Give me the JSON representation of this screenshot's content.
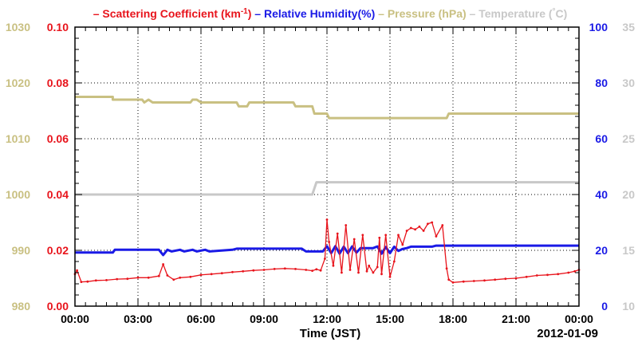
{
  "chart_data": {
    "type": "line",
    "xlabel": "Time (JST)",
    "date_label": "2012-01-09",
    "x_tick_labels": [
      "00:00",
      "03:00",
      "06:00",
      "09:00",
      "12:00",
      "15:00",
      "18:00",
      "21:00",
      "00:00"
    ],
    "xlim_hours": [
      0,
      24
    ],
    "grid": true,
    "legend": {
      "placement": "top",
      "entries": [
        {
          "marker": "–",
          "name": "Scattering Coefficient (km",
          "sup": "-1",
          "after": ")",
          "color": "#e8141c"
        },
        {
          "marker": "–",
          "name": "Relative Humidity(%)",
          "color": "#1a1ae6"
        },
        {
          "marker": "–",
          "name": "Pressure (hPa)",
          "color": "#c9c082"
        },
        {
          "marker": "–",
          "name": "Temperature (",
          "sup": "°",
          "after": "C)",
          "color": "#c8c8c8"
        }
      ]
    },
    "axes": {
      "scattering": {
        "side": "left-inner",
        "ylim": [
          0,
          0.1
        ],
        "ticks": [
          "0.00",
          "0.02",
          "0.04",
          "0.06",
          "0.08",
          "0.10"
        ],
        "color": "#e8141c"
      },
      "pressure": {
        "side": "left-outer",
        "ylim": [
          980,
          1030
        ],
        "ticks": [
          "980",
          "990",
          "1000",
          "1010",
          "1020",
          "1030"
        ],
        "color": "#c9c082"
      },
      "humidity": {
        "side": "right-inner",
        "ylim": [
          0,
          100
        ],
        "ticks": [
          "0",
          "20",
          "40",
          "60",
          "80",
          "100"
        ],
        "color": "#1a1ae6"
      },
      "temperature": {
        "side": "right-outer",
        "ylim": [
          10,
          35
        ],
        "ticks": [
          "10",
          "15",
          "20",
          "25",
          "30",
          "35"
        ],
        "color": "#c8c8c8"
      }
    },
    "series": [
      {
        "name": "Pressure (hPa)",
        "axis": "pressure",
        "color": "#c9c082",
        "x": [
          0,
          1.8,
          1.8,
          3.2,
          3.3,
          3.5,
          3.7,
          5.5,
          5.6,
          5.8,
          6.0,
          7.7,
          7.8,
          8.2,
          8.3,
          10.4,
          10.5,
          11.3,
          11.4,
          12.0,
          12.1,
          17.7,
          17.8,
          24
        ],
        "values": [
          1017.5,
          1017.5,
          1017,
          1017,
          1016.5,
          1017,
          1016.5,
          1016.5,
          1017,
          1017,
          1016.5,
          1016.5,
          1015.8,
          1015.8,
          1016.5,
          1016.5,
          1015.8,
          1015.8,
          1014.5,
          1014.5,
          1013.7,
          1013.7,
          1014.5,
          1014.5
        ]
      },
      {
        "name": "Temperature (°C)",
        "axis": "temperature",
        "color": "#c8c8c8",
        "x": [
          0,
          11.3,
          11.5,
          24
        ],
        "values": [
          20.0,
          20.0,
          21.1,
          21.1
        ]
      },
      {
        "name": "Relative Humidity(%)",
        "axis": "humidity",
        "color": "#1a1ae6",
        "x": [
          0,
          1.8,
          1.9,
          4.0,
          4.2,
          4.4,
          4.6,
          5.0,
          5.2,
          5.6,
          5.8,
          6.2,
          6.4,
          7.5,
          7.7,
          10.8,
          11.0,
          11.8,
          12.0,
          12.2,
          12.4,
          12.6,
          12.8,
          13.0,
          13.2,
          13.4,
          13.6,
          14.2,
          14.4,
          14.6,
          14.8,
          15.0,
          15.2,
          15.4,
          15.6,
          15.8,
          16.0,
          17.0,
          17.2,
          24
        ],
        "values": [
          19.2,
          19.2,
          20.2,
          20.2,
          18.3,
          20.2,
          19.6,
          20.2,
          19.6,
          20.2,
          19.6,
          20.2,
          19.6,
          20.2,
          20.6,
          20.6,
          19.6,
          19.6,
          21.5,
          19.0,
          21.5,
          18.8,
          21.3,
          19.0,
          21.4,
          19.2,
          20.8,
          20.8,
          21.4,
          18.8,
          21.2,
          19.0,
          21.3,
          19.8,
          20.5,
          20.8,
          21.3,
          21.3,
          21.7,
          21.7
        ]
      },
      {
        "name": "Scattering Coefficient (km-1)",
        "axis": "scattering",
        "color": "#e8141c",
        "x": [
          0,
          0.1,
          0.3,
          0.6,
          1.0,
          1.5,
          2.0,
          2.5,
          3.0,
          3.5,
          4.0,
          4.2,
          4.4,
          4.7,
          5.0,
          5.5,
          6.0,
          6.5,
          7.0,
          7.5,
          8.0,
          8.5,
          9.0,
          9.5,
          10.0,
          10.5,
          11.0,
          11.3,
          11.5,
          11.7,
          11.9,
          12.0,
          12.1,
          12.3,
          12.5,
          12.7,
          12.9,
          13.1,
          13.3,
          13.5,
          13.7,
          13.9,
          14.0,
          14.2,
          14.4,
          14.5,
          14.6,
          14.8,
          15.0,
          15.2,
          15.4,
          15.6,
          15.8,
          16.0,
          16.2,
          16.4,
          16.6,
          16.8,
          17.0,
          17.2,
          17.5,
          17.7,
          17.8,
          18.0,
          18.5,
          19.0,
          19.5,
          20.0,
          20.5,
          21.0,
          21.5,
          22.0,
          22.5,
          23.0,
          23.5,
          23.8,
          24
        ],
        "values": [
          0.0115,
          0.0128,
          0.0087,
          0.0088,
          0.0092,
          0.0093,
          0.0097,
          0.0098,
          0.0102,
          0.0102,
          0.0108,
          0.015,
          0.011,
          0.0095,
          0.0102,
          0.0105,
          0.0112,
          0.0115,
          0.0118,
          0.0122,
          0.0125,
          0.0128,
          0.013,
          0.0133,
          0.0135,
          0.0133,
          0.013,
          0.0127,
          0.0132,
          0.0128,
          0.017,
          0.031,
          0.023,
          0.0145,
          0.026,
          0.012,
          0.029,
          0.013,
          0.024,
          0.012,
          0.0255,
          0.0125,
          0.0145,
          0.012,
          0.014,
          0.0245,
          0.0115,
          0.0255,
          0.0105,
          0.016,
          0.0255,
          0.022,
          0.027,
          0.028,
          0.0275,
          0.0285,
          0.027,
          0.0295,
          0.03,
          0.025,
          0.029,
          0.0135,
          0.0095,
          0.0085,
          0.0088,
          0.009,
          0.0092,
          0.0095,
          0.0098,
          0.01,
          0.0105,
          0.011,
          0.0112,
          0.0115,
          0.012,
          0.0125,
          0.013
        ]
      }
    ]
  }
}
